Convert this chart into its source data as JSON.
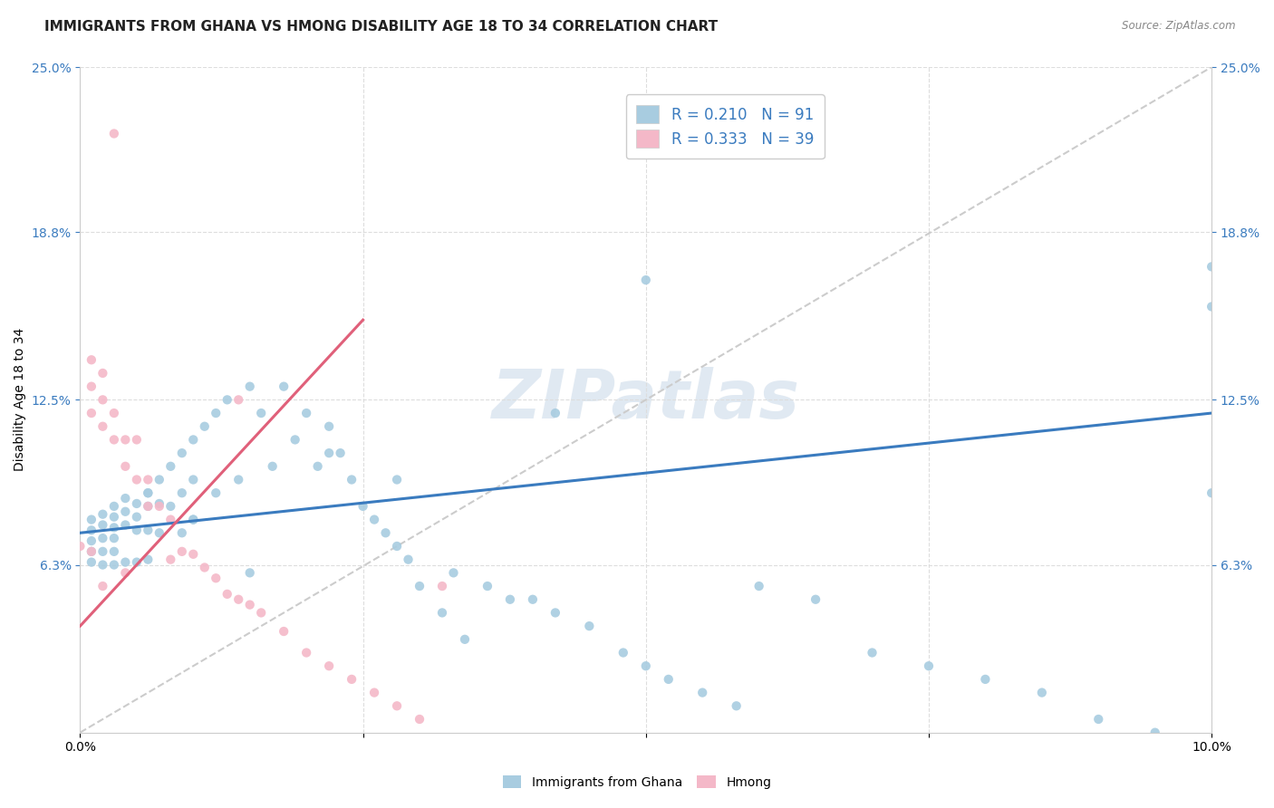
{
  "title": "IMMIGRANTS FROM GHANA VS HMONG DISABILITY AGE 18 TO 34 CORRELATION CHART",
  "source": "Source: ZipAtlas.com",
  "ylabel": "Disability Age 18 to 34",
  "xlim": [
    0.0,
    0.1
  ],
  "ylim": [
    0.0,
    0.25
  ],
  "ytick_labels": [
    "6.3%",
    "12.5%",
    "18.8%",
    "25.0%"
  ],
  "ytick_values": [
    0.063,
    0.125,
    0.188,
    0.25
  ],
  "xtick_values": [
    0.0,
    0.025,
    0.05,
    0.075,
    0.1
  ],
  "xtick_labels": [
    "0.0%",
    "",
    "",
    "",
    "10.0%"
  ],
  "ghana_R": 0.21,
  "ghana_N": 91,
  "hmong_R": 0.333,
  "hmong_N": 39,
  "ghana_color": "#a8cce0",
  "hmong_color": "#f4b8c8",
  "ghana_line_color": "#3a7bbf",
  "hmong_line_color": "#e0607a",
  "diagonal_color": "#cccccc",
  "background_color": "#ffffff",
  "grid_color": "#dddddd",
  "ghana_scatter_x": [
    0.001,
    0.001,
    0.001,
    0.001,
    0.001,
    0.002,
    0.002,
    0.002,
    0.002,
    0.002,
    0.003,
    0.003,
    0.003,
    0.003,
    0.003,
    0.003,
    0.004,
    0.004,
    0.004,
    0.004,
    0.005,
    0.005,
    0.005,
    0.005,
    0.006,
    0.006,
    0.006,
    0.006,
    0.007,
    0.007,
    0.007,
    0.008,
    0.008,
    0.009,
    0.009,
    0.009,
    0.01,
    0.01,
    0.01,
    0.011,
    0.012,
    0.012,
    0.013,
    0.014,
    0.015,
    0.016,
    0.017,
    0.018,
    0.019,
    0.02,
    0.021,
    0.022,
    0.023,
    0.024,
    0.025,
    0.026,
    0.027,
    0.028,
    0.029,
    0.03,
    0.032,
    0.034,
    0.036,
    0.038,
    0.04,
    0.042,
    0.045,
    0.048,
    0.05,
    0.052,
    0.055,
    0.058,
    0.06,
    0.065,
    0.07,
    0.075,
    0.08,
    0.085,
    0.09,
    0.095,
    0.1,
    0.1,
    0.1,
    0.042,
    0.05,
    0.028,
    0.033,
    0.022,
    0.015,
    0.01,
    0.006
  ],
  "ghana_scatter_y": [
    0.08,
    0.076,
    0.072,
    0.068,
    0.064,
    0.082,
    0.078,
    0.073,
    0.068,
    0.063,
    0.085,
    0.081,
    0.077,
    0.073,
    0.068,
    0.063,
    0.088,
    0.083,
    0.078,
    0.064,
    0.086,
    0.081,
    0.076,
    0.064,
    0.09,
    0.085,
    0.076,
    0.065,
    0.095,
    0.086,
    0.075,
    0.1,
    0.085,
    0.105,
    0.09,
    0.075,
    0.11,
    0.095,
    0.08,
    0.115,
    0.12,
    0.09,
    0.125,
    0.095,
    0.13,
    0.12,
    0.1,
    0.13,
    0.11,
    0.12,
    0.1,
    0.115,
    0.105,
    0.095,
    0.085,
    0.08,
    0.075,
    0.07,
    0.065,
    0.055,
    0.045,
    0.035,
    0.055,
    0.05,
    0.05,
    0.045,
    0.04,
    0.03,
    0.025,
    0.02,
    0.015,
    0.01,
    0.055,
    0.05,
    0.03,
    0.025,
    0.02,
    0.015,
    0.005,
    0.0,
    0.09,
    0.16,
    0.175,
    0.12,
    0.17,
    0.095,
    0.06,
    0.105,
    0.06,
    0.08,
    0.09
  ],
  "hmong_scatter_x": [
    0.003,
    0.0,
    0.001,
    0.001,
    0.001,
    0.002,
    0.002,
    0.002,
    0.003,
    0.003,
    0.004,
    0.004,
    0.005,
    0.005,
    0.006,
    0.006,
    0.007,
    0.008,
    0.009,
    0.01,
    0.011,
    0.012,
    0.013,
    0.014,
    0.015,
    0.016,
    0.018,
    0.02,
    0.022,
    0.024,
    0.026,
    0.028,
    0.03,
    0.032,
    0.014,
    0.008,
    0.004,
    0.002,
    0.001
  ],
  "hmong_scatter_y": [
    0.225,
    0.07,
    0.14,
    0.13,
    0.12,
    0.135,
    0.125,
    0.115,
    0.12,
    0.11,
    0.11,
    0.1,
    0.11,
    0.095,
    0.095,
    0.085,
    0.085,
    0.08,
    0.068,
    0.067,
    0.062,
    0.058,
    0.052,
    0.05,
    0.048,
    0.045,
    0.038,
    0.03,
    0.025,
    0.02,
    0.015,
    0.01,
    0.005,
    0.055,
    0.125,
    0.065,
    0.06,
    0.055,
    0.068
  ],
  "ghana_line_x0": 0.0,
  "ghana_line_x1": 0.1,
  "ghana_line_y0": 0.075,
  "ghana_line_y1": 0.12,
  "hmong_line_x0": 0.0,
  "hmong_line_x1": 0.025,
  "hmong_line_y0": 0.04,
  "hmong_line_y1": 0.155,
  "watermark_text": "ZIPatlas",
  "watermark_fontsize": 54,
  "title_fontsize": 11,
  "label_fontsize": 10,
  "tick_fontsize": 10,
  "legend_fontsize": 12,
  "bottom_legend_labels": [
    "Immigrants from Ghana",
    "Hmong"
  ]
}
